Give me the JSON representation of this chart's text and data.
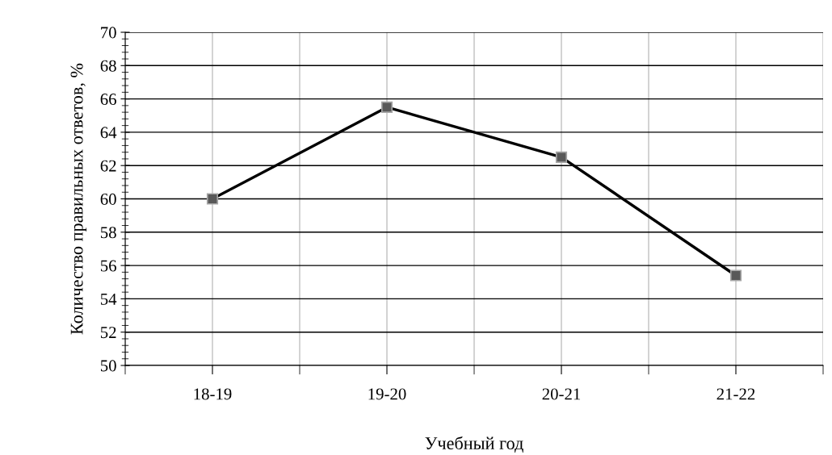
{
  "chart_data": {
    "type": "line",
    "xlabel": "Учебный год",
    "ylabel": "Количество правильных ответов, %",
    "categories": [
      "18-19",
      "19-20",
      "20-21",
      "21-22"
    ],
    "series": [
      {
        "color": "#000000",
        "values": [
          60,
          65.5,
          62.5,
          55.4
        ]
      }
    ],
    "ylim": [
      50,
      70
    ],
    "yticks": [
      50,
      52,
      54,
      56,
      58,
      60,
      62,
      64,
      66,
      68,
      70
    ],
    "grid": true,
    "marker": "square",
    "line_style": "solid"
  }
}
